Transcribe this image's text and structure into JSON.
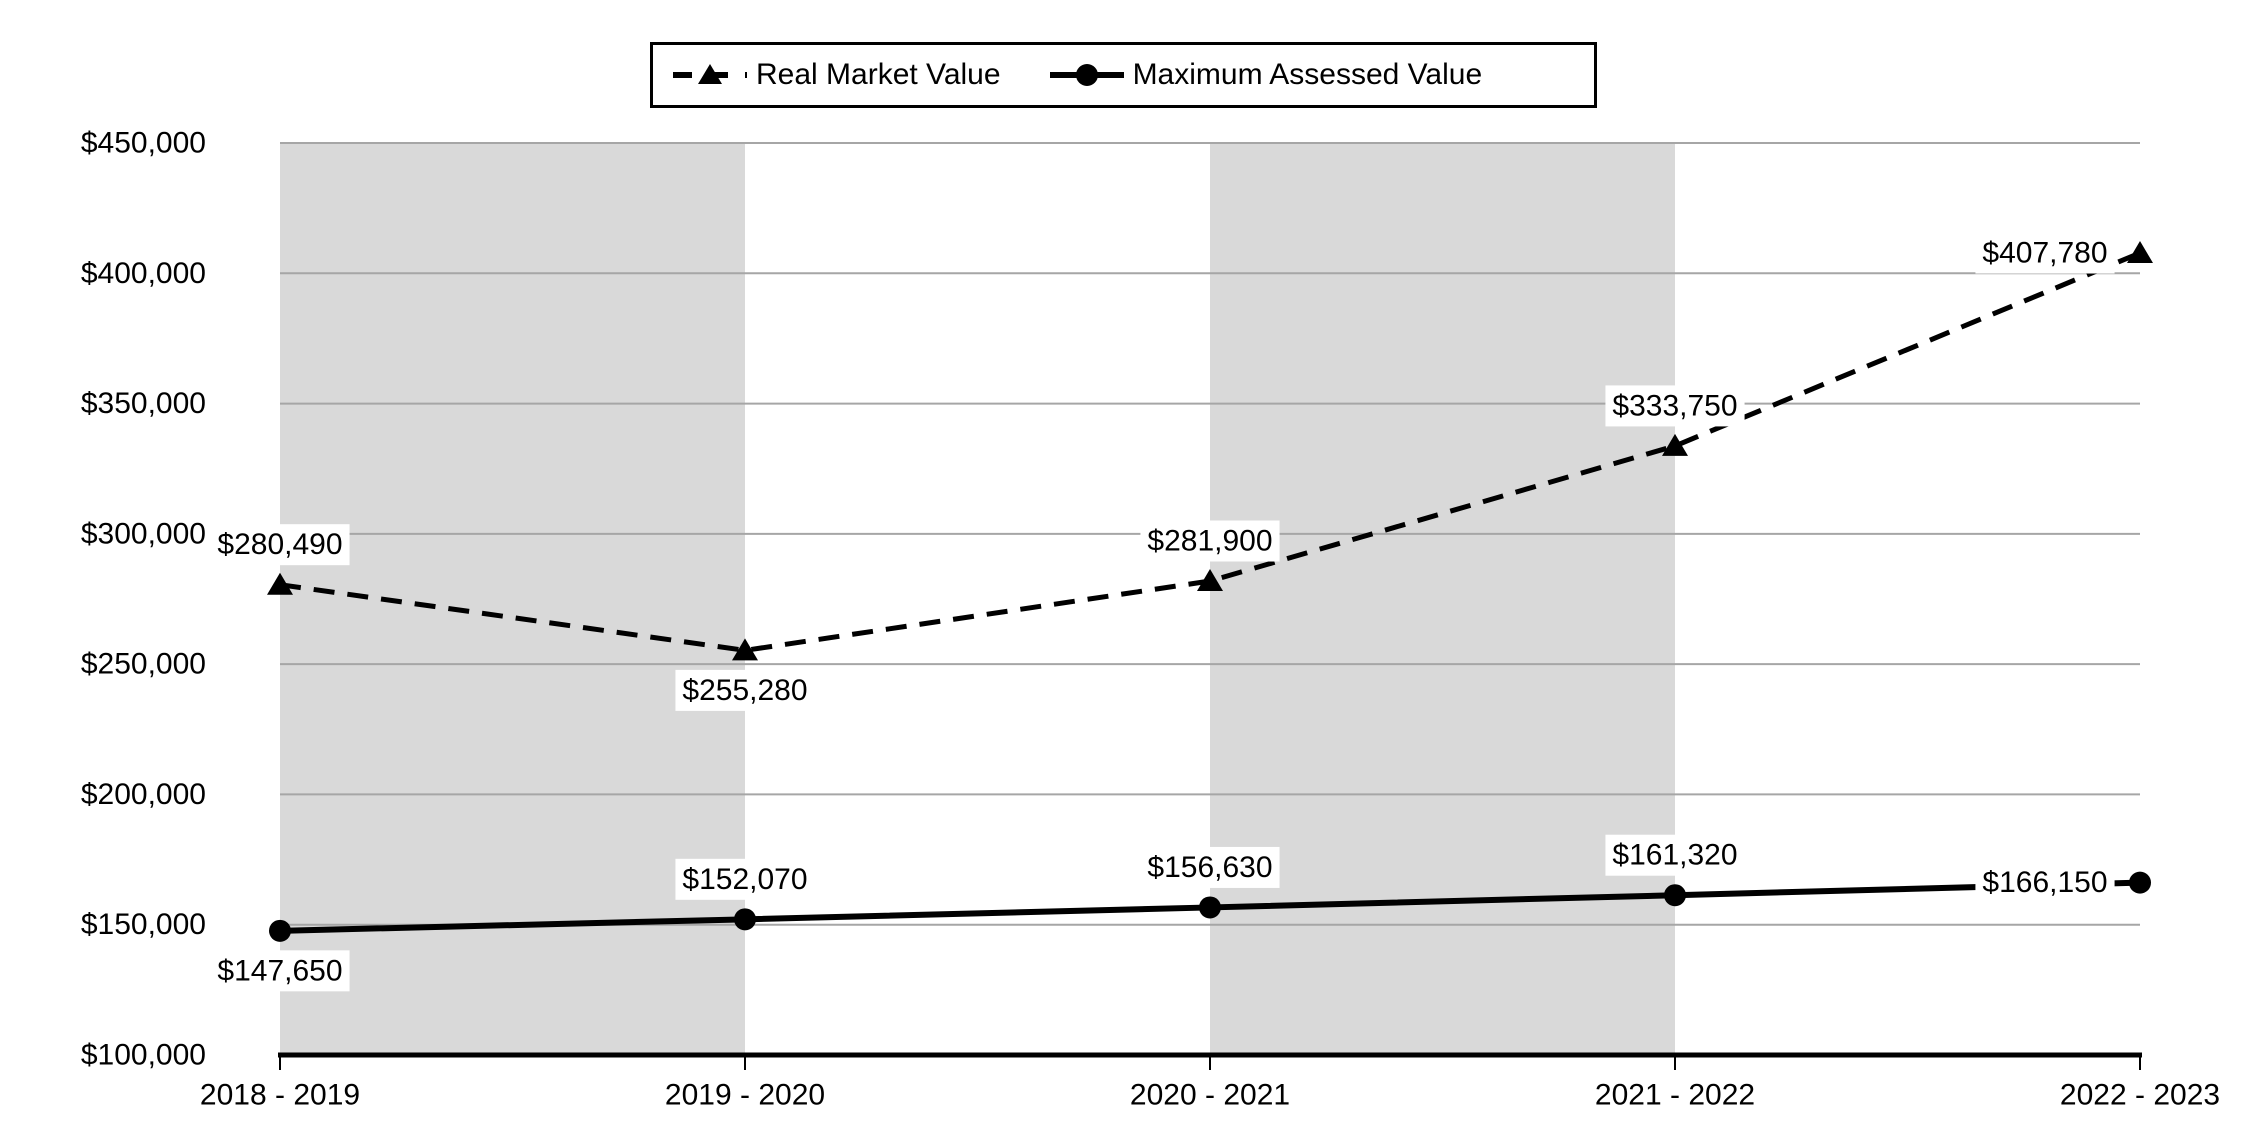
{
  "chart_data": {
    "type": "line",
    "title": "",
    "categories": [
      "2018 - 2019",
      "2019 - 2020",
      "2020 - 2021",
      "2021 - 2022",
      "2022 - 2023"
    ],
    "y_axis": {
      "min": 100000,
      "max": 450000,
      "step": 50000,
      "tick_labels": [
        "$100,000",
        "$150,000",
        "$200,000",
        "$250,000",
        "$300,000",
        "$350,000",
        "$400,000",
        "$450,000"
      ]
    },
    "series": [
      {
        "name": "Real Market Value",
        "line_style": "dashed",
        "marker": "triangle",
        "color": "#000000",
        "values": [
          280490,
          255280,
          281900,
          333750,
          407780
        ],
        "labels": [
          "$280,490",
          "$255,280",
          "$281,900",
          "$333,750",
          "$407,780"
        ],
        "label_placement": [
          "above",
          "below",
          "above",
          "above",
          "left"
        ]
      },
      {
        "name": "Maximum Assessed Value",
        "line_style": "solid",
        "marker": "circle",
        "color": "#000000",
        "values": [
          147650,
          152070,
          156630,
          161320,
          166150
        ],
        "labels": [
          "$147,650",
          "$152,070",
          "$156,630",
          "$161,320",
          "$166,150"
        ],
        "label_placement": [
          "below",
          "above",
          "above",
          "above",
          "left"
        ]
      }
    ],
    "plot_bands": {
      "band_start_indices": [
        0,
        2
      ],
      "color": "#d9d9d9"
    },
    "legend_position": "top",
    "grid": true,
    "colors": {
      "series": "#000000",
      "gridline": "#a6a6a6",
      "band": "#d9d9d9",
      "axis_line": "#000000",
      "background": "#ffffff",
      "label_background": "#ffffff"
    }
  }
}
